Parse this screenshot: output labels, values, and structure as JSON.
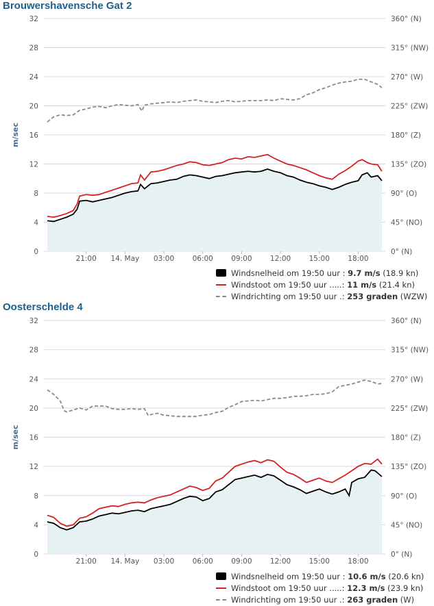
{
  "colors": {
    "speed": "#000000",
    "gust": "#d61f1f",
    "direction": "#8a8a8a",
    "area_fill": "#e6f1f3",
    "grid": "#d8d8d8",
    "title": "#1f5f8b"
  },
  "chart_data": [
    {
      "type": "line",
      "title": "Brouwershavensche Gat 2",
      "ylabel": "m/sec",
      "ylim": [
        0,
        32
      ],
      "yticks": [
        "0",
        "4",
        "8",
        "12",
        "16",
        "20",
        "24",
        "28",
        "32"
      ],
      "y2ticks": [
        "0° (N)",
        "45° (NO)",
        "90° (O)",
        "135° (ZO)",
        "180° (Z)",
        "225° (ZW)",
        "270° (W)",
        "315° (NW)",
        "360° (N)"
      ],
      "x_range": [
        "18:00",
        "19:50 (+1 day)"
      ],
      "x_hours": [
        0,
        25.83
      ],
      "xticks": [
        "21:00",
        "14. May",
        "03:00",
        "06:00",
        "09:00",
        "12:00",
        "15:00",
        "18:00"
      ],
      "xtick_hours": [
        3,
        6,
        9,
        12,
        15,
        18,
        21,
        24
      ],
      "grid": true,
      "legend_position": "bottom-right",
      "series": [
        {
          "name": "Windsnelheid",
          "role": "speed",
          "x": [
            0,
            0.5,
            1,
            1.5,
            2,
            2.3,
            2.5,
            3,
            3.5,
            4,
            4.5,
            5,
            5.5,
            6,
            6.5,
            7,
            7.2,
            7.5,
            8,
            8.5,
            9,
            9.5,
            10,
            10.5,
            11,
            11.5,
            12,
            12.5,
            13,
            13.5,
            14,
            14.5,
            15,
            15.5,
            16,
            16.5,
            17,
            17.5,
            18,
            18.5,
            19,
            19.5,
            20,
            20.5,
            21,
            21.5,
            22,
            22.5,
            23,
            23.5,
            24,
            24.3,
            24.7,
            25,
            25.5,
            25.83
          ],
          "values": [
            4.2,
            4.1,
            4.4,
            4.7,
            5.1,
            5.8,
            6.9,
            7.0,
            6.8,
            7.0,
            7.2,
            7.4,
            7.7,
            8.0,
            8.2,
            8.3,
            9.2,
            8.6,
            9.3,
            9.4,
            9.6,
            9.8,
            9.9,
            10.3,
            10.5,
            10.4,
            10.2,
            10.0,
            10.3,
            10.4,
            10.6,
            10.8,
            10.9,
            11.0,
            10.9,
            11.0,
            11.3,
            11.0,
            10.8,
            10.4,
            10.2,
            9.8,
            9.5,
            9.3,
            9.0,
            8.8,
            8.5,
            8.8,
            9.2,
            9.5,
            9.7,
            10.5,
            10.8,
            10.2,
            10.4,
            9.7
          ]
        },
        {
          "name": "Windstoot",
          "role": "gust",
          "x": [
            0,
            0.5,
            1,
            1.5,
            2,
            2.3,
            2.5,
            3,
            3.5,
            4,
            4.5,
            5,
            5.5,
            6,
            6.5,
            7,
            7.2,
            7.5,
            8,
            8.5,
            9,
            9.5,
            10,
            10.5,
            11,
            11.5,
            12,
            12.5,
            13,
            13.5,
            14,
            14.5,
            15,
            15.5,
            16,
            16.5,
            17,
            17.5,
            18,
            18.5,
            19,
            19.5,
            20,
            20.5,
            21,
            21.5,
            22,
            22.5,
            23,
            23.5,
            24,
            24.3,
            24.7,
            25,
            25.5,
            25.83
          ],
          "values": [
            4.8,
            4.7,
            4.9,
            5.2,
            5.6,
            6.5,
            7.6,
            7.8,
            7.7,
            7.8,
            8.1,
            8.4,
            8.7,
            9.0,
            9.3,
            9.4,
            10.5,
            9.8,
            10.9,
            11.0,
            11.2,
            11.5,
            11.8,
            12.0,
            12.3,
            12.2,
            11.9,
            11.8,
            12.0,
            12.2,
            12.6,
            12.8,
            12.7,
            13.0,
            12.9,
            13.1,
            13.3,
            12.8,
            12.4,
            12.0,
            11.8,
            11.5,
            11.2,
            10.8,
            10.4,
            10.1,
            9.9,
            10.6,
            11.1,
            11.7,
            12.4,
            12.6,
            12.2,
            12.0,
            11.9,
            11.0
          ]
        },
        {
          "name": "Windrichting",
          "role": "direction",
          "axis": "right",
          "x": [
            0,
            0.5,
            1,
            1.5,
            2,
            2.5,
            3,
            3.5,
            4,
            4.5,
            5,
            5.5,
            6,
            6.5,
            7,
            7.3,
            7.5,
            8,
            8.5,
            9,
            9.5,
            10,
            10.5,
            11,
            11.5,
            12,
            12.5,
            13,
            13.5,
            14,
            14.5,
            15,
            15.5,
            16,
            16.5,
            17,
            17.5,
            18,
            18.5,
            19,
            19.5,
            20,
            20.5,
            21,
            21.5,
            22,
            22.5,
            23,
            23.5,
            24,
            24.5,
            25,
            25.5,
            25.83
          ],
          "values": [
            200,
            208,
            211,
            210,
            211,
            218,
            220,
            223,
            224,
            222,
            225,
            227,
            226,
            225,
            227,
            217,
            226,
            228,
            229,
            230,
            231,
            230,
            232,
            233,
            234,
            232,
            231,
            230,
            232,
            233,
            231,
            232,
            233,
            233,
            233,
            234,
            233,
            236,
            235,
            234,
            236,
            242,
            245,
            250,
            253,
            257,
            260,
            262,
            263,
            266,
            266,
            262,
            258,
            253
          ]
        }
      ]
    },
    {
      "type": "line",
      "title": "Oosterschelde 4",
      "ylabel": "m/sec",
      "ylim": [
        0,
        32
      ],
      "yticks": [
        "0",
        "4",
        "8",
        "12",
        "16",
        "20",
        "24",
        "28",
        "32"
      ],
      "y2ticks": [
        "0° (N)",
        "45° (NO)",
        "90° (O)",
        "135° (ZO)",
        "180° (Z)",
        "225° (ZW)",
        "270° (W)",
        "315° (NW)",
        "360° (N)"
      ],
      "x_range": [
        "18:00",
        "19:50 (+1 day)"
      ],
      "x_hours": [
        0,
        25.83
      ],
      "xticks": [
        "21:00",
        "14. May",
        "03:00",
        "06:00",
        "09:00",
        "12:00",
        "15:00",
        "18:00"
      ],
      "xtick_hours": [
        3,
        6,
        9,
        12,
        15,
        18,
        21,
        24
      ],
      "grid": true,
      "legend_position": "bottom-right",
      "series": [
        {
          "name": "Windsnelheid",
          "role": "speed",
          "x": [
            0,
            0.5,
            1,
            1.5,
            2,
            2.5,
            3,
            3.5,
            4,
            4.5,
            5,
            5.5,
            6,
            6.5,
            7,
            7.5,
            8,
            8.5,
            9,
            9.5,
            10,
            10.5,
            11,
            11.5,
            12,
            12.5,
            13,
            13.5,
            14,
            14.5,
            15,
            15.5,
            16,
            16.5,
            17,
            17.5,
            18,
            18.5,
            19,
            19.5,
            20,
            20.5,
            21,
            21.5,
            22,
            22.5,
            23,
            23.3,
            23.5,
            24,
            24.5,
            25,
            25.3,
            25.83
          ],
          "values": [
            4.4,
            4.2,
            3.6,
            3.3,
            3.6,
            4.4,
            4.5,
            4.8,
            5.2,
            5.4,
            5.6,
            5.5,
            5.7,
            5.9,
            6.0,
            5.8,
            6.2,
            6.4,
            6.6,
            6.8,
            7.2,
            7.6,
            7.9,
            7.8,
            7.3,
            7.6,
            8.5,
            8.8,
            9.5,
            10.2,
            10.4,
            10.6,
            10.8,
            10.5,
            10.9,
            10.7,
            10.1,
            9.5,
            9.2,
            8.8,
            8.3,
            8.6,
            8.9,
            8.5,
            8.2,
            8.5,
            8.9,
            8.0,
            9.8,
            10.3,
            10.5,
            11.5,
            11.4,
            10.6
          ]
        },
        {
          "name": "Windstoot",
          "role": "gust",
          "x": [
            0,
            0.5,
            1,
            1.5,
            2,
            2.5,
            3,
            3.5,
            4,
            4.5,
            5,
            5.5,
            6,
            6.5,
            7,
            7.5,
            8,
            8.5,
            9,
            9.5,
            10,
            10.5,
            11,
            11.5,
            12,
            12.5,
            13,
            13.5,
            14,
            14.5,
            15,
            15.5,
            16,
            16.5,
            17,
            17.5,
            18,
            18.5,
            19,
            19.5,
            20,
            20.5,
            21,
            21.5,
            22,
            22.5,
            23,
            23.5,
            24,
            24.5,
            25,
            25.5,
            25.83
          ],
          "values": [
            5.3,
            5.0,
            4.2,
            3.8,
            4.0,
            4.9,
            5.1,
            5.6,
            6.2,
            6.4,
            6.6,
            6.5,
            6.8,
            7.0,
            7.1,
            7.0,
            7.4,
            7.7,
            7.9,
            8.1,
            8.5,
            8.9,
            9.3,
            9.1,
            8.7,
            9.0,
            10.0,
            10.4,
            11.2,
            12.0,
            12.3,
            12.6,
            12.8,
            12.5,
            12.9,
            12.7,
            11.9,
            11.2,
            10.9,
            10.4,
            9.8,
            10.1,
            10.4,
            10.0,
            9.8,
            10.3,
            10.8,
            11.4,
            12.0,
            12.4,
            12.3,
            13.0,
            12.3
          ]
        },
        {
          "name": "Windrichting",
          "role": "direction",
          "axis": "right",
          "x": [
            0,
            0.5,
            1,
            1.3,
            1.5,
            2,
            2.5,
            3,
            3.5,
            4,
            4.5,
            5,
            5.5,
            6,
            6.5,
            7,
            7.5,
            7.8,
            8,
            8.5,
            9,
            9.5,
            10,
            10.5,
            11,
            11.5,
            12,
            12.5,
            13,
            13.5,
            14,
            14.5,
            15,
            15.5,
            16,
            16.5,
            17,
            17.5,
            18,
            18.5,
            19,
            19.5,
            20,
            20.5,
            21,
            21.5,
            22,
            22.5,
            23,
            23.5,
            24,
            24.5,
            25,
            25.5,
            25.83
          ],
          "values": [
            253,
            246,
            236,
            221,
            219,
            222,
            225,
            222,
            228,
            228,
            228,
            224,
            223,
            223,
            224,
            223,
            224,
            213,
            215,
            217,
            214,
            213,
            212,
            212,
            212,
            212,
            214,
            215,
            218,
            220,
            226,
            230,
            235,
            236,
            237,
            236,
            238,
            240,
            240,
            241,
            243,
            243,
            244,
            246,
            246,
            247,
            250,
            258,
            260,
            262,
            265,
            268,
            266,
            262,
            263
          ]
        }
      ]
    }
  ],
  "panels": [
    {
      "title": "Brouwershavensche Gat 2",
      "legend": [
        {
          "label": "Windsnelheid om 19:50 uur :",
          "value": "9.7 m/s",
          "extra": "(18.9 kn)"
        },
        {
          "label": "Windstoot om 19:50 uur .....:",
          "value": "11 m/s",
          "extra": "(21.4 kn)"
        },
        {
          "label": "Windrichting om 19:50 uur .:",
          "value": "253 graden",
          "extra": "(WZW)"
        }
      ]
    },
    {
      "title": "Oosterschelde 4",
      "legend": [
        {
          "label": "Windsnelheid om 19:50 uur :",
          "value": "10.6 m/s",
          "extra": "(20.6 kn)"
        },
        {
          "label": "Windstoot om 19:50 uur .....:",
          "value": "12.3 m/s",
          "extra": "(23.9 kn)"
        },
        {
          "label": "Windrichting om 19:50 uur .:",
          "value": "263 graden",
          "extra": "(W)"
        }
      ]
    }
  ]
}
